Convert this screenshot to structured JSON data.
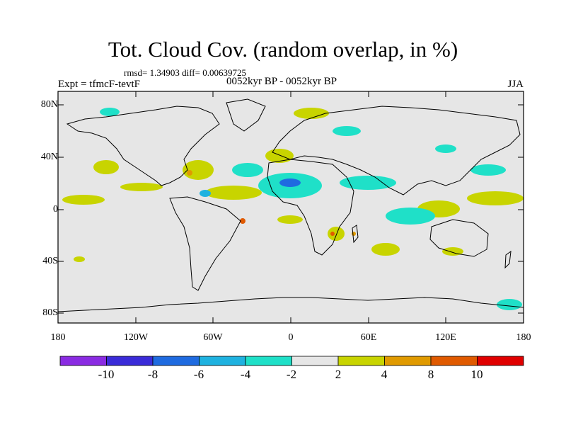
{
  "title": "Tot. Cloud Cov. (random overlap, in %)",
  "stats": "rmsd= 1.34903  diff= 0.00639725",
  "experiment": "Expt = tfmcF-tevtF",
  "period": "0052kyr BP - 0052kyr BP",
  "season": "JJA",
  "lat_ticks": [
    "80N",
    "40N",
    "0",
    "40S",
    "80S"
  ],
  "lon_ticks": [
    "180",
    "120W",
    "60W",
    "0",
    "60E",
    "120E",
    "180"
  ],
  "colorbar": {
    "labels": [
      "-10",
      "-8",
      "-6",
      "-4",
      "-2",
      "2",
      "4",
      "8",
      "10"
    ],
    "colors": [
      "#8a2be2",
      "#3a2bd8",
      "#1f6be0",
      "#1fb2e0",
      "#1fe0c8",
      "#e6e6e6",
      "#c8d400",
      "#e09a00",
      "#e05a00",
      "#e00000"
    ]
  },
  "map": {
    "background_color": "#e6e6e6",
    "coastline_color": "#000000"
  }
}
